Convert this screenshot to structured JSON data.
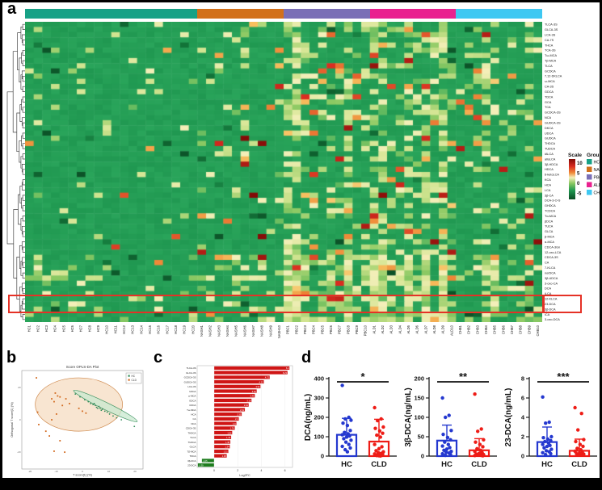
{
  "panels": {
    "a": "a",
    "b": "b",
    "c": "c",
    "d": "d"
  },
  "chart_data": [
    {
      "id": "heatmap",
      "type": "heatmap",
      "rows": [
        "TLCA-3S",
        "GLCA-3S",
        "LCA-3S",
        "CA-7S",
        "THCA",
        "TCA-3S",
        "Tω-MCA",
        "Tβ-MCA",
        "TLCA",
        "GCDCA",
        "7,12-DKLCA",
        "ω-MCA",
        "CA-3S",
        "GDCA",
        "TDCA",
        "GCA",
        "TCA",
        "GCDCA-3S",
        "NCA",
        "GUDCA-3S",
        "DKCA",
        "UDCA",
        "GUDCA",
        "THDCA",
        "TUDCA",
        "iALCA",
        "alloLCA",
        "3β-HDCA",
        "HDCA",
        "6-ketoLCA",
        "KCA",
        "HCA",
        "LCA",
        "3β-CA",
        "DCA-3-O-S",
        "GHDCA",
        "TCDCA",
        "Tα-MCA",
        "βDCA",
        "TUCA",
        "GLCA",
        "β-MCA",
        "α-MCA",
        "CDCA-3Gn",
        "12-oxo-LCA",
        "CDCA-3S",
        "CA",
        "7-KLCA",
        "norDCA",
        "3β-UDCA",
        "3-oxo-CA",
        "DCA",
        "iLCA",
        "12-KLCA",
        "23-DCA",
        "3β-DCA",
        "iCA",
        "3-oxo-DCA"
      ],
      "columns": [
        "HC1",
        "HC2",
        "HC3",
        "HC4",
        "HC5",
        "HC6",
        "HC7",
        "HC8",
        "HC9",
        "HC10",
        "HC11",
        "HC12",
        "HC13",
        "HC14",
        "HC15",
        "HC16",
        "HC17",
        "HC18",
        "HC19",
        "HC20",
        "NASH1",
        "NASH2",
        "NASH3",
        "NASH4",
        "NASH5",
        "NASH6",
        "NASH7",
        "NASH8",
        "NASH9",
        "NASH10",
        "PBC1",
        "PBC2",
        "PBC3",
        "PBC4",
        "PBC5",
        "PBC6",
        "PBC7",
        "PBC8",
        "PBC9",
        "PBC10",
        "ALD1",
        "ALD2",
        "ALD3",
        "ALD4",
        "ALD5",
        "ALD6",
        "ALD7",
        "ALD8",
        "ALD9",
        "ALD10",
        "CHB1",
        "CHB2",
        "CHB3",
        "CHB4",
        "CHB5",
        "CHB6",
        "CHB7",
        "CHB8",
        "CHB9",
        "CHB10"
      ],
      "col_groups": [
        {
          "name": "HC",
          "color": "#17a186",
          "count": 20
        },
        {
          "name": "NASH",
          "color": "#d2701a",
          "count": 10
        },
        {
          "name": "PBC",
          "color": "#7a6fb6",
          "count": 10
        },
        {
          "name": "ALD",
          "color": "#e9218f",
          "count": 10
        },
        {
          "name": "CHB",
          "color": "#3ec8f2",
          "count": 10
        }
      ],
      "scale_legend": {
        "title": "Scale",
        "ticks": [
          "10",
          "5",
          "0",
          "-5"
        ]
      },
      "group_legend_title": "Group",
      "highlight_rows": [
        "12-KLCA",
        "23-DCA",
        "3β-DCA"
      ],
      "highlight_color": "#e53126",
      "cell_note": "cells are unlabeled z-scores: predominantly ~0 (green) with sporadic elevated (yellow/red) values concentrated in PBC, ALD and CHB columns and in bottom rows",
      "seed": 7,
      "gen": {
        "warm": [
          0.05,
          0.09,
          0.2,
          0.2,
          0.11
        ],
        "hot": [
          0.006,
          0.02,
          0.05,
          0.05,
          0.025
        ]
      }
    },
    {
      "id": "oplsda",
      "type": "scatter",
      "title": "Score OPLS-DA Plot",
      "xlabel": "T score[1] (%)",
      "ylabel": "Orthogonal T score[1] (%)",
      "xticks": [
        "-20",
        "-10",
        "0",
        "10",
        "20"
      ],
      "yticks": [
        "20",
        "0",
        "-20"
      ],
      "series": [
        {
          "name": "HC",
          "color": "#2e8b57",
          "points": [
            [
              0.44,
              0.23
            ],
            [
              0.48,
              0.26
            ],
            [
              0.52,
              0.29
            ],
            [
              0.55,
              0.31
            ],
            [
              0.57,
              0.33
            ],
            [
              0.59,
              0.34
            ],
            [
              0.6,
              0.33
            ],
            [
              0.61,
              0.35
            ],
            [
              0.62,
              0.37
            ],
            [
              0.63,
              0.38
            ],
            [
              0.64,
              0.36
            ],
            [
              0.65,
              0.38
            ],
            [
              0.66,
              0.4
            ],
            [
              0.67,
              0.39
            ],
            [
              0.69,
              0.41
            ],
            [
              0.71,
              0.42
            ],
            [
              0.73,
              0.44
            ],
            [
              0.76,
              0.46
            ],
            [
              0.79,
              0.48
            ],
            [
              0.83,
              0.5
            ],
            [
              0.94,
              0.57
            ]
          ]
        },
        {
          "name": "CLD",
          "color": "#d2691e",
          "points": [
            [
              0.11,
              0.06
            ],
            [
              0.12,
              0.42
            ],
            [
              0.27,
              0.22
            ],
            [
              0.29,
              0.25
            ],
            [
              0.24,
              0.28
            ],
            [
              0.31,
              0.26
            ],
            [
              0.26,
              0.31
            ],
            [
              0.36,
              0.28
            ],
            [
              0.39,
              0.33
            ],
            [
              0.33,
              0.35
            ],
            [
              0.47,
              0.38
            ],
            [
              0.5,
              0.41
            ],
            [
              0.53,
              0.43
            ],
            [
              0.28,
              0.44
            ],
            [
              0.24,
              0.5
            ],
            [
              0.13,
              0.55
            ],
            [
              0.19,
              0.62
            ],
            [
              0.22,
              0.67
            ],
            [
              0.31,
              0.72
            ],
            [
              0.26,
              0.83
            ],
            [
              0.35,
              0.84
            ]
          ]
        }
      ],
      "ellipses": [
        {
          "series": "CLD",
          "cx": 0.47,
          "cy": 0.34,
          "rx": 0.37,
          "ry": 0.28,
          "rotation": 0,
          "fill": "#f5dcc2",
          "stroke": "#cf8a4e"
        },
        {
          "series": "HC",
          "cx": 0.695,
          "cy": 0.355,
          "rx": 0.3,
          "ry": 0.038,
          "rotation": 26,
          "fill": "#c8e8cf",
          "stroke": "#3d9160"
        }
      ]
    },
    {
      "id": "log2fc",
      "type": "bar",
      "orientation": "horizontal",
      "xlabel": "Log2FC",
      "xticks": [
        0,
        2,
        4,
        6
      ],
      "up_color": "#cf1515",
      "down_color": "#1e7d1e",
      "categories": [
        "TLCA-3S",
        "GLCA-3S",
        "GCDCA-3S",
        "GUDCA-3S",
        "LCA-3S",
        "UDCA",
        "ω-MCA",
        "GDCA",
        "CDCA",
        "Tω-MCA",
        "HCA",
        "CA",
        "NCA",
        "CDCA-3S",
        "THDCA",
        "TLCA",
        "TUDCA",
        "GLCA",
        "Tβ-MCA",
        "TDCA",
        "3β-DCA",
        "23-DCA"
      ],
      "values": [
        6.4,
        6.23,
        4.72,
        4.22,
        3.94,
        3.62,
        3.46,
        3.18,
        2.94,
        2.61,
        2.35,
        2.1,
        1.9,
        1.76,
        1.54,
        1.45,
        1.38,
        1.34,
        1.21,
        1.08,
        -1.05,
        -1.39
      ]
    },
    {
      "id": "dca",
      "type": "bar-scatter",
      "ylabel": "DCA(ng/mL)",
      "categories": [
        "HC",
        "CLD"
      ],
      "ymax": 400,
      "yticks": [
        0,
        100,
        200,
        300,
        400
      ],
      "significance": "*",
      "series": [
        {
          "name": "HC",
          "color": "#2438cf",
          "bar_mean": 110,
          "whisker_top": 195,
          "dots": [
            365,
            200,
            192,
            185,
            170,
            158,
            132,
            122,
            115,
            110,
            104,
            98,
            90,
            82,
            72,
            60,
            50,
            42,
            33,
            22
          ]
        },
        {
          "name": "CLD",
          "color": "#ee1c16",
          "bar_mean": 75,
          "whisker_top": 190,
          "dots": [
            250,
            192,
            183,
            150,
            143,
            130,
            118,
            108,
            98,
            60,
            48,
            38,
            28,
            22,
            18,
            14,
            11,
            9,
            7,
            5,
            4,
            3,
            2,
            1
          ]
        }
      ]
    },
    {
      "id": "b-dca",
      "type": "bar-scatter",
      "ylabel": "3β-DCA(ng/mL)",
      "categories": [
        "HC",
        "CLD"
      ],
      "ymax": 200,
      "yticks": [
        0,
        50,
        100,
        150,
        200
      ],
      "significance": "**",
      "series": [
        {
          "name": "HC",
          "color": "#2438cf",
          "bar_mean": 40,
          "whisker_top": 80,
          "dots": [
            150,
            105,
            100,
            66,
            56,
            48,
            42,
            36,
            30,
            26,
            22,
            18,
            15,
            12,
            10,
            8,
            6,
            4,
            2
          ]
        },
        {
          "name": "CLD",
          "color": "#ee1c16",
          "bar_mean": 15,
          "whisker_top": 45,
          "dots": [
            160,
            70,
            64,
            42,
            36,
            30,
            24,
            19,
            15,
            12,
            9,
            7,
            5,
            4,
            3,
            2,
            1.5,
            1
          ]
        }
      ]
    },
    {
      "id": "23-dca",
      "type": "bar-scatter",
      "ylabel": "23-DCA(ng/mL)",
      "categories": [
        "HC",
        "CLD"
      ],
      "ymax": 8,
      "yticks": [
        0,
        2,
        4,
        6,
        8
      ],
      "significance": "***",
      "series": [
        {
          "name": "HC",
          "color": "#2438cf",
          "bar_mean": 1.45,
          "whisker_top": 3.0,
          "dots": [
            6.1,
            3.5,
            3.4,
            2.0,
            1.9,
            1.75,
            1.6,
            1.5,
            1.35,
            1.2,
            1.1,
            1.0,
            0.85,
            0.7,
            0.55,
            0.45,
            0.35,
            0.25,
            0.15
          ]
        },
        {
          "name": "CLD",
          "color": "#ee1c16",
          "bar_mean": 0.55,
          "whisker_top": 1.75,
          "dots": [
            5.0,
            4.4,
            2.7,
            1.7,
            1.5,
            1.2,
            1.0,
            0.8,
            0.65,
            0.5,
            0.4,
            0.3,
            0.25,
            0.2,
            0.15,
            0.1
          ]
        }
      ]
    }
  ]
}
